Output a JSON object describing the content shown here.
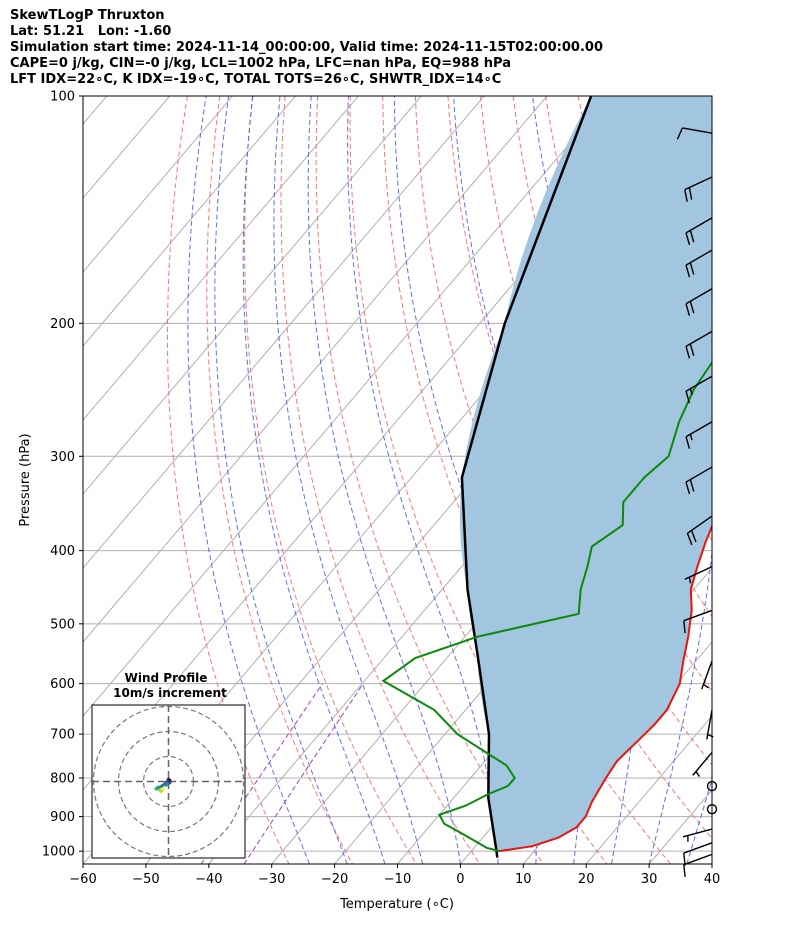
{
  "header": {
    "line1": "SkewTLogP Thruxton",
    "line2": "Lat: 51.21   Lon: -1.60",
    "line3": "Simulation start time: 2024-11-14_00:00:00, Valid time: 2024-11-15T02:00:00.00",
    "line4": "CAPE=0 j/kg, CIN=-0 j/kg, LCL=1002 hPa, LFC=nan hPa, EQ=988 hPa",
    "line5": "LFT IDX=22∘C, K IDX=-19∘C, TOTAL TOTS=26∘C, SHWTR_IDX=14∘C"
  },
  "chart_data": {
    "type": "line",
    "xlabel": "Temperature (∘C)",
    "ylabel": "Pressure (hPa)",
    "xlim": [
      -60,
      40
    ],
    "ylim": [
      1040,
      100
    ],
    "yscale": "log",
    "xticks": [
      -60,
      -50,
      -40,
      -30,
      -20,
      -10,
      0,
      10,
      20,
      30,
      40
    ],
    "yticks": [
      100,
      200,
      300,
      400,
      500,
      600,
      700,
      800,
      900,
      1000
    ],
    "grid": true,
    "skew": true,
    "colors": {
      "temperature": "#e8150e",
      "dewpoint": "#0b8a0b",
      "parcel": "#000000",
      "shade": "#a2c6df",
      "dry_adiabats": "#f36a6a",
      "moist_adiabats": "#4f5ff0",
      "mixing_ratio": "#a040c8",
      "grid": "#b0b0b0"
    },
    "series": [
      {
        "role": "temperature",
        "points": [
          [
            4.5,
            1000
          ],
          [
            9,
            985
          ],
          [
            12,
            960
          ],
          [
            13.5,
            930
          ],
          [
            13.5,
            900
          ],
          [
            12.5,
            860
          ],
          [
            11.5,
            800
          ],
          [
            11,
            760
          ],
          [
            11.5,
            720
          ],
          [
            12,
            680
          ],
          [
            12,
            650
          ],
          [
            10.5,
            600
          ],
          [
            8,
            560
          ],
          [
            5.5,
            520
          ],
          [
            2.5,
            480
          ],
          [
            -0.5,
            450
          ],
          [
            -2.5,
            420
          ],
          [
            -4.5,
            390
          ],
          [
            -7,
            350
          ],
          [
            -10,
            320
          ],
          [
            -13,
            290
          ],
          [
            -16,
            260
          ],
          [
            -17,
            240
          ],
          [
            -17,
            220
          ],
          [
            -16.5,
            210
          ],
          [
            -15.5,
            195
          ],
          [
            -14,
            180
          ],
          [
            -12,
            165
          ],
          [
            -9,
            150
          ],
          [
            -6.5,
            135
          ],
          [
            -4.5,
            125
          ],
          [
            -2,
            115
          ],
          [
            0,
            100
          ]
        ]
      },
      {
        "role": "dewpoint",
        "points": [
          [
            4.5,
            1000
          ],
          [
            2,
            990
          ],
          [
            -5,
            940
          ],
          [
            -8,
            920
          ],
          [
            -10,
            895
          ],
          [
            -7,
            870
          ],
          [
            -5,
            840
          ],
          [
            -3,
            820
          ],
          [
            -3,
            800
          ],
          [
            -6,
            770
          ],
          [
            -18,
            700
          ],
          [
            -25,
            650
          ],
          [
            -37,
            595
          ],
          [
            -35,
            555
          ],
          [
            -28,
            520
          ],
          [
            -15,
            485
          ],
          [
            -18,
            450
          ],
          [
            -20,
            420
          ],
          [
            -22,
            395
          ],
          [
            -20,
            370
          ],
          [
            -23,
            345
          ],
          [
            -23,
            320
          ],
          [
            -22,
            300
          ],
          [
            -25,
            270
          ],
          [
            -27,
            245
          ],
          [
            -28,
            220
          ],
          [
            -28,
            205
          ],
          [
            -26,
            195
          ],
          [
            -24,
            180
          ],
          [
            -24,
            165
          ],
          [
            -25,
            150
          ],
          [
            -29,
            140
          ],
          [
            -30,
            128
          ],
          [
            -28,
            115
          ],
          [
            -26,
            100
          ]
        ]
      },
      {
        "role": "parcel",
        "points": [
          [
            5,
            1020
          ],
          [
            4,
            1000
          ],
          [
            -4.5,
            850
          ],
          [
            -13,
            700
          ],
          [
            -25.5,
            550
          ],
          [
            -36,
            450
          ],
          [
            -52,
            320
          ],
          [
            -66,
            200
          ],
          [
            -83,
            100
          ]
        ]
      }
    ],
    "wind_barbs": [
      {
        "p": 1010,
        "dir": 250,
        "spd": 10
      },
      {
        "p": 975,
        "dir": 250,
        "spd": 10
      },
      {
        "p": 935,
        "dir": 255,
        "spd": 5
      },
      {
        "p": 880,
        "dir": 0,
        "spd": 0
      },
      {
        "p": 820,
        "dir": 0,
        "spd": 0
      },
      {
        "p": 740,
        "dir": 220,
        "spd": 5
      },
      {
        "p": 650,
        "dir": 190,
        "spd": 5
      },
      {
        "p": 560,
        "dir": 200,
        "spd": 5
      },
      {
        "p": 480,
        "dir": 250,
        "spd": 10
      },
      {
        "p": 420,
        "dir": 245,
        "spd": 5
      },
      {
        "p": 360,
        "dir": 235,
        "spd": 20
      },
      {
        "p": 310,
        "dir": 240,
        "spd": 20
      },
      {
        "p": 270,
        "dir": 240,
        "spd": 15
      },
      {
        "p": 235,
        "dir": 240,
        "spd": 15
      },
      {
        "p": 205,
        "dir": 240,
        "spd": 20
      },
      {
        "p": 180,
        "dir": 240,
        "spd": 20
      },
      {
        "p": 160,
        "dir": 240,
        "spd": 20
      },
      {
        "p": 145,
        "dir": 240,
        "spd": 20
      },
      {
        "p": 128,
        "dir": 245,
        "spd": 20
      },
      {
        "p": 112,
        "dir": 280,
        "spd": 10
      }
    ],
    "hodograph": {
      "title": "Wind Profile",
      "subtitle": "10m/s increment",
      "points": [
        [
          -2,
          -3
        ],
        [
          -3,
          -4
        ],
        [
          -4,
          -3
        ],
        [
          -5,
          -3
        ],
        [
          -4.5,
          -2.5
        ],
        [
          -3,
          -2
        ],
        [
          -1.5,
          -1
        ],
        [
          -0.5,
          0
        ],
        [
          0,
          1
        ],
        [
          0.5,
          0.5
        ],
        [
          0.5,
          -0.5
        ],
        [
          -0.5,
          -1
        ],
        [
          -1,
          -1.5
        ]
      ]
    }
  }
}
